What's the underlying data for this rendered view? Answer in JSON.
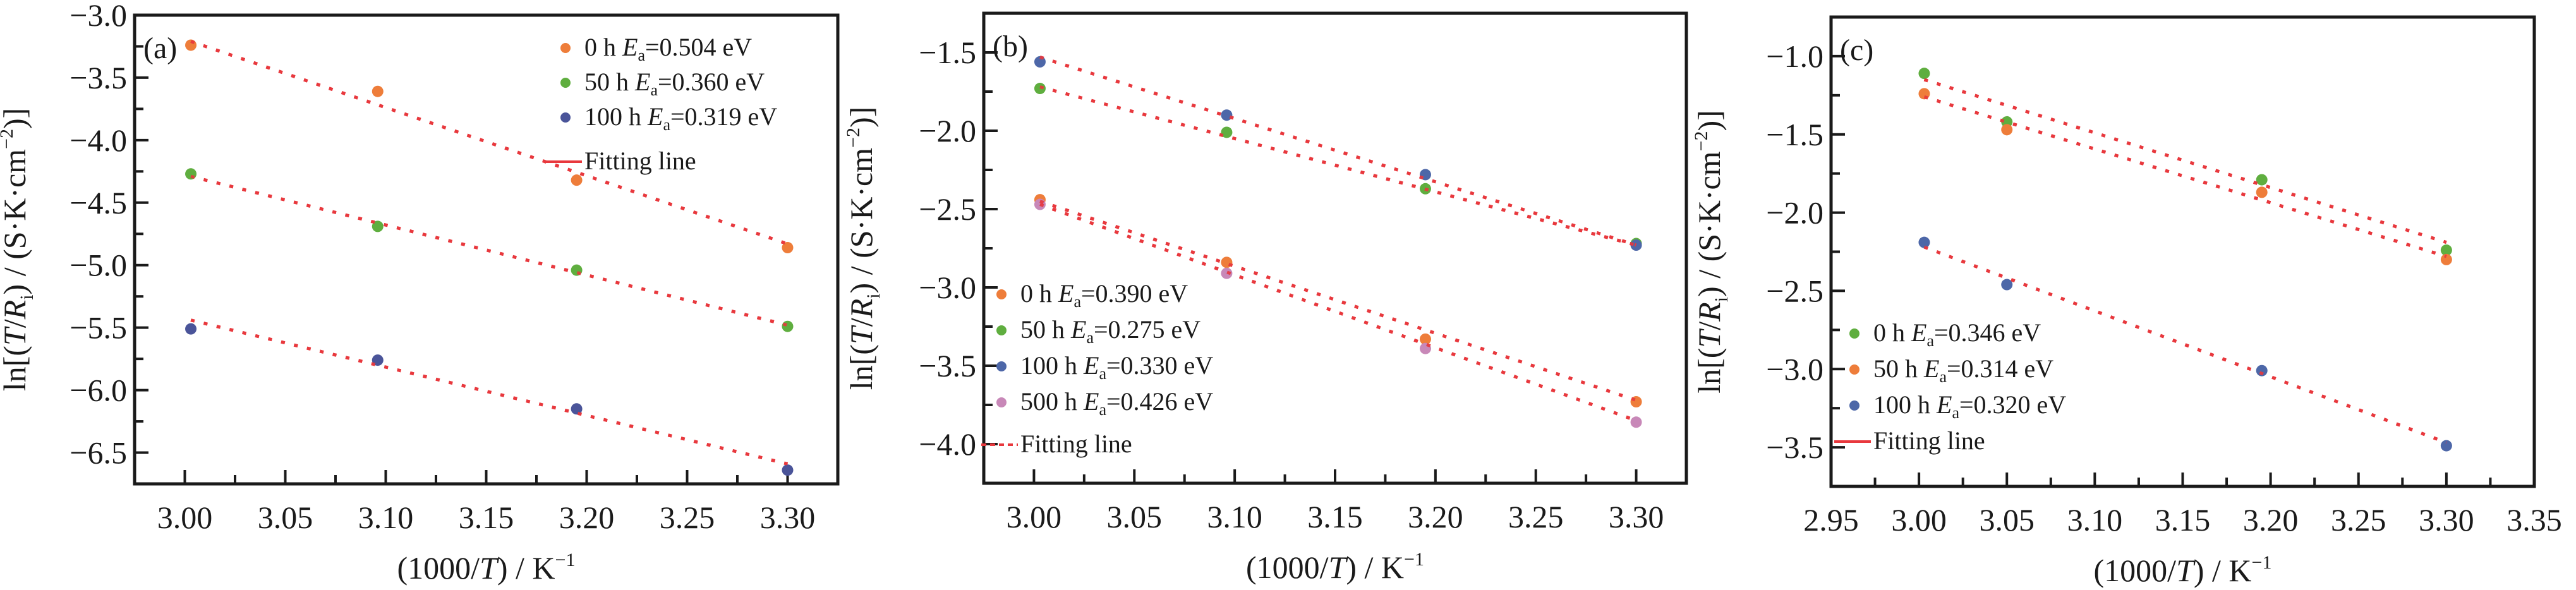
{
  "figure": {
    "colors": {
      "orange": "#EE7D3A",
      "green": "#5FAE3F",
      "navy": "#4A5499",
      "blue": "#4D67A8",
      "pink": "#C888B8",
      "fit": "#E8383D",
      "axis": "#1a1a1a"
    }
  },
  "chart_data": [
    {
      "type": "scatter",
      "panel_label": "(a)",
      "xlabel": "(1000/T) / K⁻¹",
      "xlabel_parts": [
        "(1000/",
        "T",
        ") / K",
        "−1"
      ],
      "ylabel": "ln[(T/Ri) / (S·K·cm⁻²)]",
      "xlim": [
        2.975,
        3.325
      ],
      "ylim": [
        -6.75,
        -3.0
      ],
      "xticks": [
        3.0,
        3.05,
        3.1,
        3.15,
        3.2,
        3.25,
        3.3
      ],
      "xtick_labels": [
        "3.00",
        "3.05",
        "3.10",
        "3.15",
        "3.20",
        "3.25",
        "3.30"
      ],
      "yticks": [
        -3.0,
        -3.5,
        -4.0,
        -4.5,
        -5.0,
        -5.5,
        -6.0,
        -6.5
      ],
      "ytick_labels": [
        "−3.0",
        "−3.5",
        "−4.0",
        "−4.5",
        "−5.0",
        "−5.5",
        "−6.0",
        "−6.5"
      ],
      "grid": false,
      "legend_position": "top-right",
      "fit_legend_style": "solid",
      "fit_legend_label": "Fitting line",
      "series": [
        {
          "name": "0 h",
          "ea": "0.504 eV",
          "color_key": "orange",
          "x": [
            3.003,
            3.096,
            3.195,
            3.3
          ],
          "y": [
            -3.24,
            -3.61,
            -4.32,
            -4.86
          ],
          "fit": [
            [
              3.003,
              -3.21
            ],
            [
              3.3,
              -4.83
            ]
          ]
        },
        {
          "name": "50 h",
          "ea": "0.360 eV",
          "color_key": "green",
          "x": [
            3.003,
            3.096,
            3.195,
            3.3
          ],
          "y": [
            -4.27,
            -4.69,
            -5.04,
            -5.49
          ],
          "fit": [
            [
              3.003,
              -4.29
            ],
            [
              3.3,
              -5.48
            ]
          ]
        },
        {
          "name": "100 h",
          "ea": "0.319 eV",
          "color_key": "navy",
          "x": [
            3.003,
            3.096,
            3.195,
            3.3
          ],
          "y": [
            -5.51,
            -5.76,
            -6.15,
            -6.64
          ],
          "fit": [
            [
              3.003,
              -5.44
            ],
            [
              3.3,
              -6.59
            ]
          ]
        }
      ]
    },
    {
      "type": "scatter",
      "panel_label": "(b)",
      "xlabel": "(1000/T) / K⁻¹",
      "xlabel_parts": [
        "(1000/",
        "T",
        ") / K",
        "−1"
      ],
      "ylabel": "ln[(T/Ri) / (S·K·cm⁻²)]",
      "xlim": [
        2.975,
        3.325
      ],
      "ylim": [
        -4.25,
        -1.25
      ],
      "xticks": [
        3.0,
        3.05,
        3.1,
        3.15,
        3.2,
        3.25,
        3.3
      ],
      "xtick_labels": [
        "3.00",
        "3.05",
        "3.10",
        "3.15",
        "3.20",
        "3.25",
        "3.30"
      ],
      "yticks": [
        -1.5,
        -2.0,
        -2.5,
        -3.0,
        -3.5,
        -4.0
      ],
      "ytick_labels": [
        "−1.5",
        "−2.0",
        "−2.5",
        "−3.0",
        "−3.5",
        "−4.0"
      ],
      "grid": false,
      "legend_position": "bottom-left",
      "fit_legend_style": "dashed",
      "fit_legend_label": "Fitting line",
      "series": [
        {
          "name": "0 h",
          "ea": "0.390 eV",
          "color_key": "orange",
          "x": [
            3.003,
            3.096,
            3.195,
            3.3
          ],
          "y": [
            -2.44,
            -2.84,
            -3.33,
            -3.73
          ],
          "fit": [
            [
              3.003,
              -2.45
            ],
            [
              3.3,
              -3.72
            ]
          ]
        },
        {
          "name": "50 h",
          "ea": "0.275 eV",
          "color_key": "green",
          "x": [
            3.003,
            3.096,
            3.195,
            3.3
          ],
          "y": [
            -1.73,
            -2.01,
            -2.37,
            -2.72
          ],
          "fit": [
            [
              3.003,
              -1.72
            ],
            [
              3.3,
              -2.73
            ]
          ]
        },
        {
          "name": "100 h",
          "ea": "0.330 eV",
          "color_key": "blue",
          "x": [
            3.003,
            3.096,
            3.195,
            3.3
          ],
          "y": [
            -1.56,
            -1.9,
            -2.28,
            -2.73
          ],
          "fit": [
            [
              3.003,
              -1.53
            ],
            [
              3.3,
              -2.73
            ]
          ]
        },
        {
          "name": "500 h",
          "ea": "0.426 eV",
          "color_key": "pink",
          "x": [
            3.003,
            3.096,
            3.195,
            3.3
          ],
          "y": [
            -2.47,
            -2.91,
            -3.39,
            -3.86
          ],
          "fit": [
            [
              3.003,
              -2.47
            ],
            [
              3.3,
              -3.85
            ]
          ]
        }
      ]
    },
    {
      "type": "scatter",
      "panel_label": "(c)",
      "xlabel": "(1000/T) / K⁻¹",
      "xlabel_parts": [
        "(1000/",
        "T",
        ") / K",
        "−1"
      ],
      "ylabel": "ln[(T/Ri) / (S·K·cm⁻²)]",
      "xlim": [
        2.95,
        3.35
      ],
      "ylim": [
        -3.75,
        -0.75
      ],
      "xticks": [
        2.95,
        3.0,
        3.05,
        3.1,
        3.15,
        3.2,
        3.25,
        3.3,
        3.35
      ],
      "xtick_labels": [
        "2.95",
        "3.00",
        "3.05",
        "3.10",
        "3.15",
        "3.20",
        "3.25",
        "3.30",
        "3.35"
      ],
      "yticks": [
        -1.0,
        -1.5,
        -2.0,
        -2.5,
        -3.0,
        -3.5
      ],
      "ytick_labels": [
        "−1.0",
        "−1.5",
        "−2.0",
        "−2.5",
        "−3.0",
        "−3.5"
      ],
      "grid": false,
      "legend_position": "bottom-left",
      "fit_legend_style": "solid",
      "fit_legend_label": "Fitting line",
      "series": [
        {
          "name": "0 h",
          "ea": "0.346 eV",
          "color_key": "green",
          "x": [
            3.003,
            3.05,
            3.195,
            3.3
          ],
          "y": [
            -1.11,
            -1.42,
            -1.79,
            -2.24
          ],
          "fit": [
            [
              3.003,
              -1.15
            ],
            [
              3.3,
              -2.19
            ]
          ]
        },
        {
          "name": "50 h",
          "ea": "0.314 eV",
          "color_key": "orange",
          "x": [
            3.003,
            3.05,
            3.195,
            3.3
          ],
          "y": [
            -1.24,
            -1.47,
            -1.87,
            -2.3
          ],
          "fit": [
            [
              3.003,
              -1.26
            ],
            [
              3.3,
              -2.28
            ]
          ]
        },
        {
          "name": "100 h",
          "ea": "0.320 eV",
          "color_key": "blue",
          "x": [
            3.003,
            3.05,
            3.195,
            3.3
          ],
          "y": [
            -2.19,
            -2.46,
            -3.01,
            -3.49
          ],
          "fit": [
            [
              3.003,
              -2.22
            ],
            [
              3.3,
              -3.47
            ]
          ]
        }
      ]
    }
  ]
}
